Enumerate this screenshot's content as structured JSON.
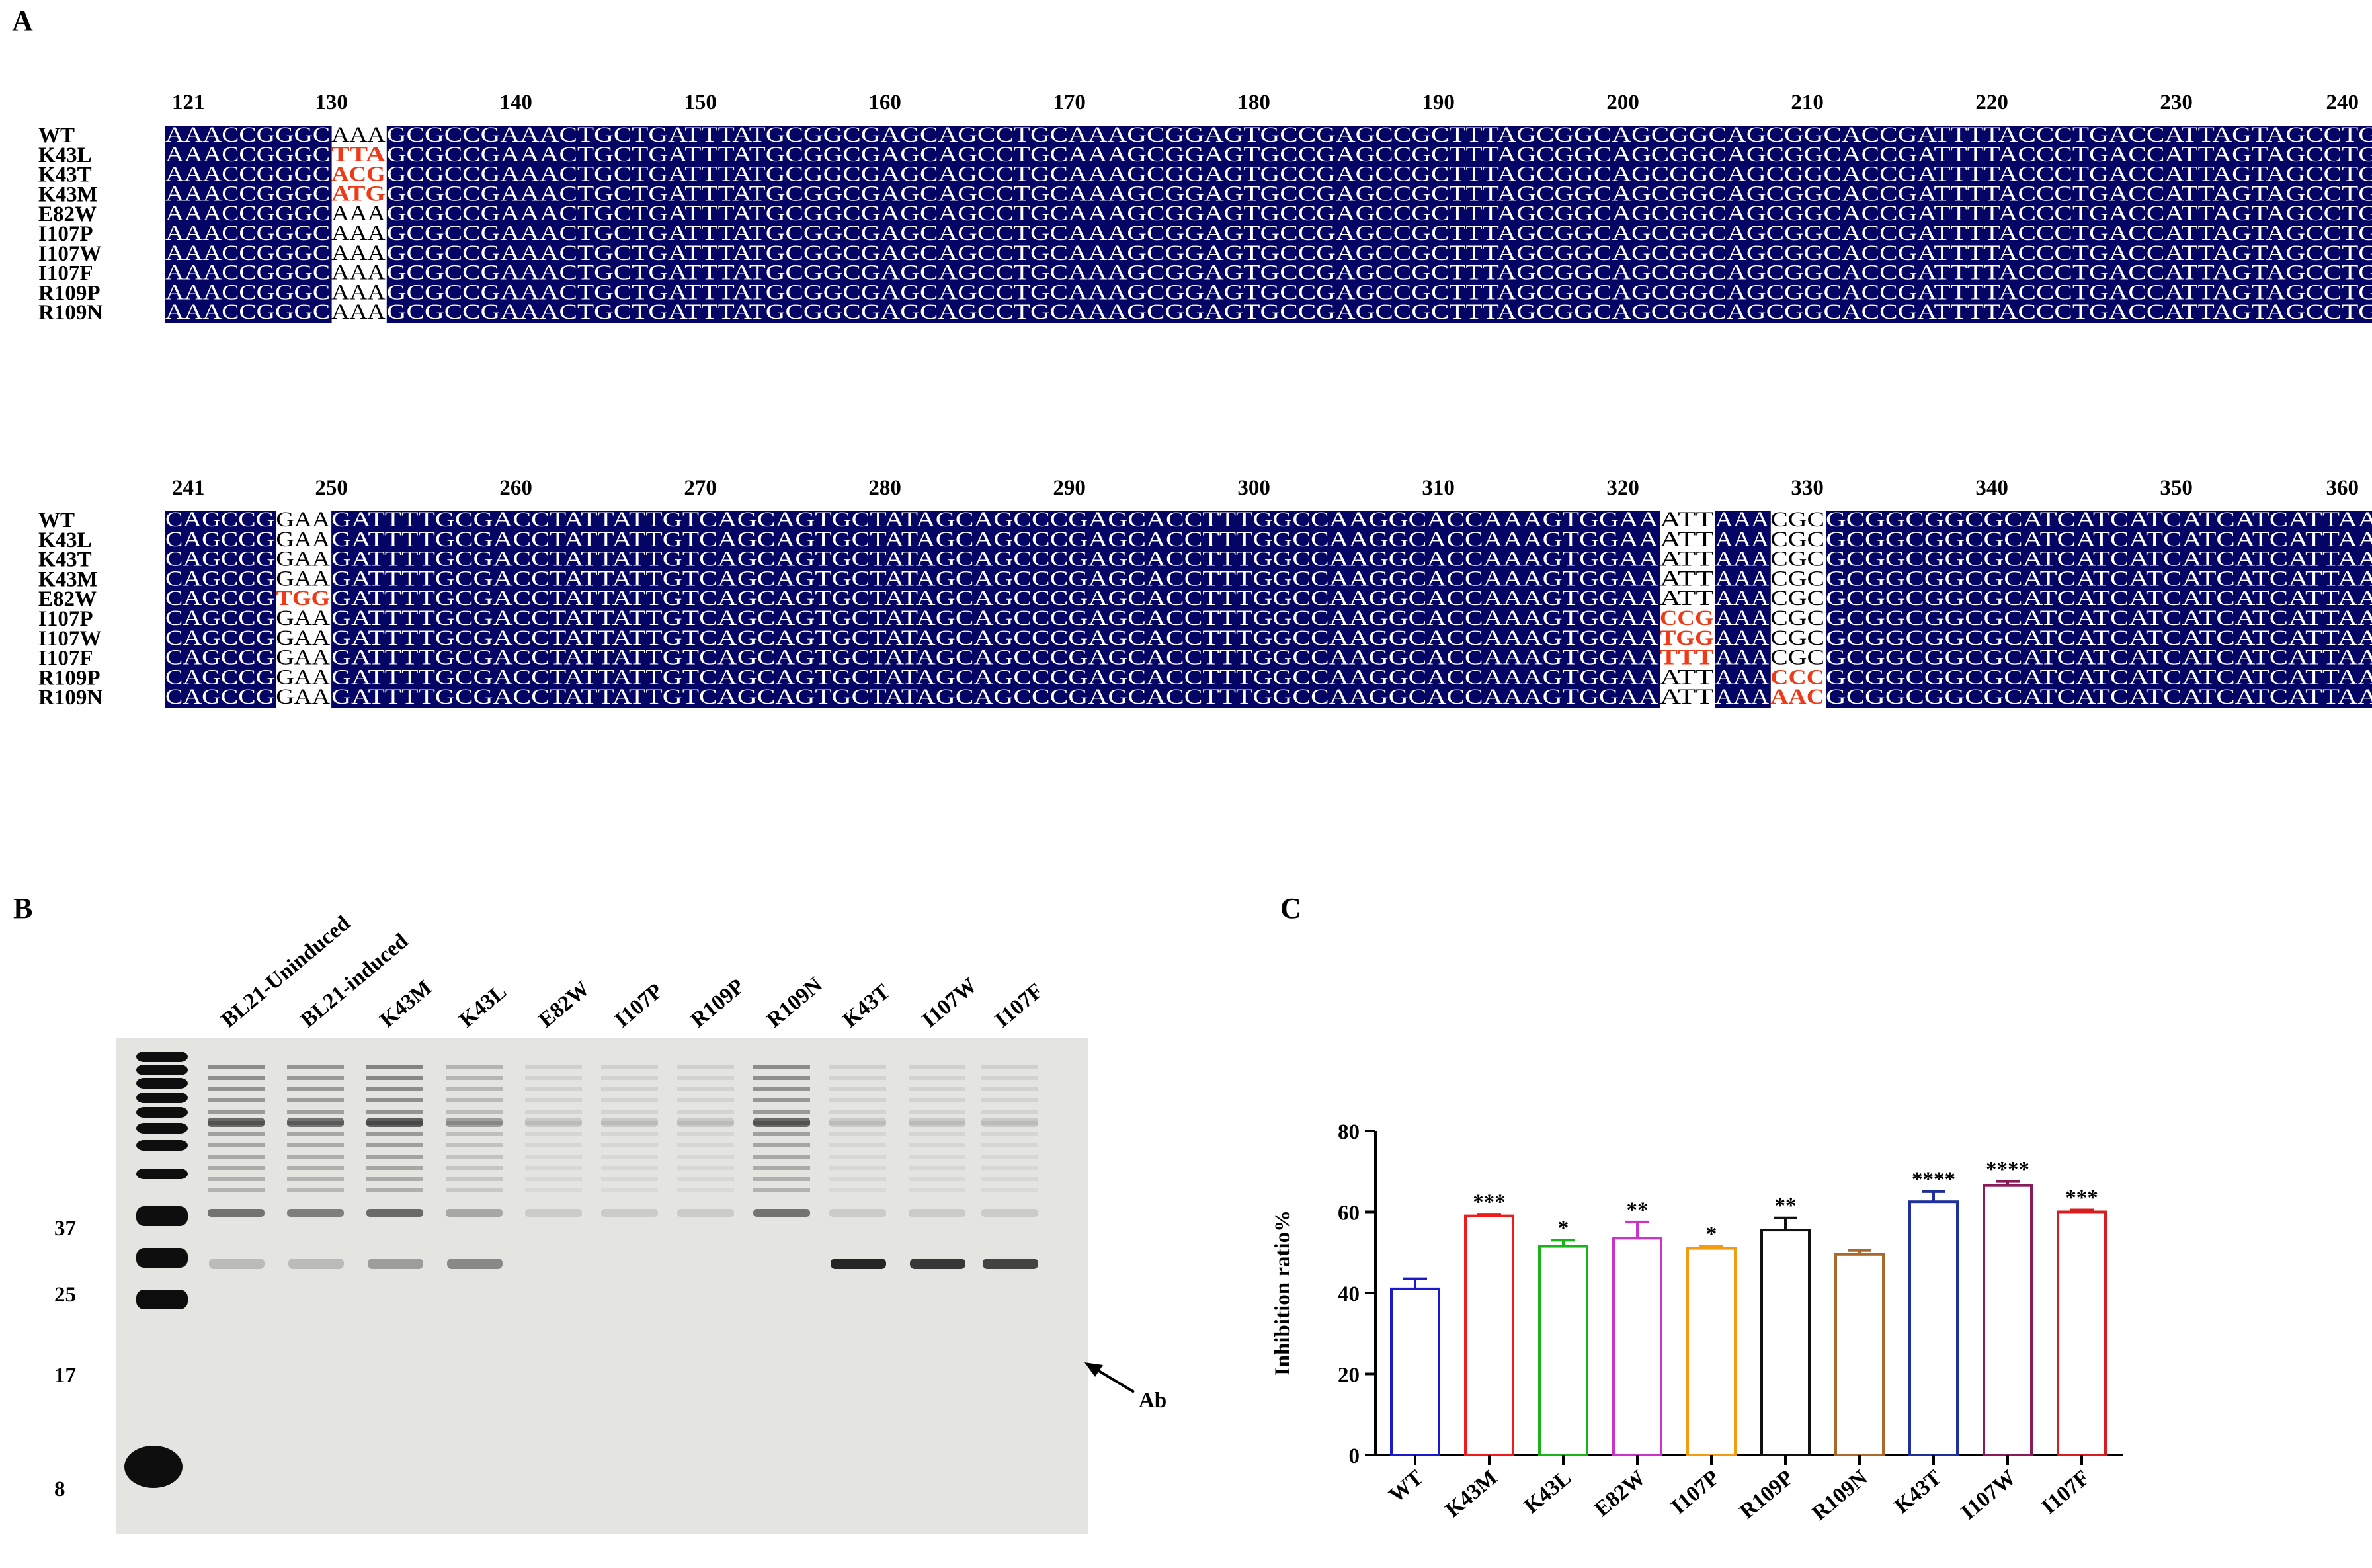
{
  "panels": {
    "a": "A",
    "b": "B",
    "c": "C"
  },
  "alignment": {
    "blocks": [
      {
        "positions": [
          "121",
          "130",
          "140",
          "150",
          "160",
          "170",
          "180",
          "190",
          "200",
          "210",
          "220",
          "230",
          "240"
        ],
        "rows": [
          {
            "name": "WT",
            "pre": "AAACCGGGC",
            "codon": "AAA",
            "mutated": false,
            "post": "GCGCCGAAACTGCTGATTTATGCGGCGAGCAGCCTGCAAAGCGGAGTGCCGAGCCGCTTTAGCGGCAGCGGCAGCGGCACCGATTTTACCCTGACCATTAGTAGCCTG"
          },
          {
            "name": "K43L",
            "pre": "AAACCGGGC",
            "codon": "TTA",
            "mutated": true,
            "post": "GCGCCGAAACTGCTGATTTATGCGGCGAGCAGCCTGCAAAGCGGAGTGCCGAGCCGCTTTAGCGGCAGCGGCAGCGGCACCGATTTTACCCTGACCATTAGTAGCCTG"
          },
          {
            "name": "K43T",
            "pre": "AAACCGGGC",
            "codon": "ACG",
            "mutated": true,
            "post": "GCGCCGAAACTGCTGATTTATGCGGCGAGCAGCCTGCAAAGCGGAGTGCCGAGCCGCTTTAGCGGCAGCGGCAGCGGCACCGATTTTACCCTGACCATTAGTAGCCTG"
          },
          {
            "name": "K43M",
            "pre": "AAACCGGGC",
            "codon": "ATG",
            "mutated": true,
            "post": "GCGCCGAAACTGCTGATTTATGCGGCGAGCAGCCTGCAAAGCGGAGTGCCGAGCCGCTTTAGCGGCAGCGGCAGCGGCACCGATTTTACCCTGACCATTAGTAGCCTG"
          },
          {
            "name": "E82W",
            "pre": "AAACCGGGC",
            "codon": "AAA",
            "mutated": false,
            "post": "GCGCCGAAACTGCTGATTTATGCGGCGAGCAGCCTGCAAAGCGGAGTGCCGAGCCGCTTTAGCGGCAGCGGCAGCGGCACCGATTTTACCCTGACCATTAGTAGCCTG"
          },
          {
            "name": "I107P",
            "pre": "AAACCGGGC",
            "codon": "AAA",
            "mutated": false,
            "post": "GCGCCGAAACTGCTGATTTATGCGGCGAGCAGCCTGCAAAGCGGAGTGCCGAGCCGCTTTAGCGGCAGCGGCAGCGGCACCGATTTTACCCTGACCATTAGTAGCCTG"
          },
          {
            "name": "I107W",
            "pre": "AAACCGGGC",
            "codon": "AAA",
            "mutated": false,
            "post": "GCGCCGAAACTGCTGATTTATGCGGCGAGCAGCCTGCAAAGCGGAGTGCCGAGCCGCTTTAGCGGCAGCGGCAGCGGCACCGATTTTACCCTGACCATTAGTAGCCTG"
          },
          {
            "name": "I107F",
            "pre": "AAACCGGGC",
            "codon": "AAA",
            "mutated": false,
            "post": "GCGCCGAAACTGCTGATTTATGCGGCGAGCAGCCTGCAAAGCGGAGTGCCGAGCCGCTTTAGCGGCAGCGGCAGCGGCACCGATTTTACCCTGACCATTAGTAGCCTG"
          },
          {
            "name": "R109P",
            "pre": "AAACCGGGC",
            "codon": "AAA",
            "mutated": false,
            "post": "GCGCCGAAACTGCTGATTTATGCGGCGAGCAGCCTGCAAAGCGGAGTGCCGAGCCGCTTTAGCGGCAGCGGCAGCGGCACCGATTTTACCCTGACCATTAGTAGCCTG"
          },
          {
            "name": "R109N",
            "pre": "AAACCGGGC",
            "codon": "AAA",
            "mutated": false,
            "post": "GCGCCGAAACTGCTGATTTATGCGGCGAGCAGCCTGCAAAGCGGAGTGCCGAGCCGCTTTAGCGGCAGCGGCAGCGGCACCGATTTTACCCTGACCATTAGTAGCCTG"
          }
        ]
      },
      {
        "positions": [
          "241",
          "250",
          "260",
          "270",
          "280",
          "290",
          "300",
          "310",
          "320",
          "330",
          "340",
          "350",
          "360"
        ],
        "rows": [
          {
            "name": "WT",
            "pre": "CAGCCG",
            "codon1": "GAA",
            "mut1": false,
            "mid": "GATTTTGCGACCTATTATTGTCAGCAGTGCTATAGCAGCCCGAGCACCTTTGGCCAAGGCACCAAAGTGGAA",
            "codon2": "ATT",
            "mut2": false,
            "mid2": "AAA",
            "codon3": "CGC",
            "mut3": false,
            "post": "GCGGCGGCGCATCATCATCATCATCATTAA"
          },
          {
            "name": "K43L",
            "pre": "CAGCCG",
            "codon1": "GAA",
            "mut1": false,
            "mid": "GATTTTGCGACCTATTATTGTCAGCAGTGCTATAGCAGCCCGAGCACCTTTGGCCAAGGCACCAAAGTGGAA",
            "codon2": "ATT",
            "mut2": false,
            "mid2": "AAA",
            "codon3": "CGC",
            "mut3": false,
            "post": "GCGGCGGCGCATCATCATCATCATCATTAA"
          },
          {
            "name": "K43T",
            "pre": "CAGCCG",
            "codon1": "GAA",
            "mut1": false,
            "mid": "GATTTTGCGACCTATTATTGTCAGCAGTGCTATAGCAGCCCGAGCACCTTTGGCCAAGGCACCAAAGTGGAA",
            "codon2": "ATT",
            "mut2": false,
            "mid2": "AAA",
            "codon3": "CGC",
            "mut3": false,
            "post": "GCGGCGGCGCATCATCATCATCATCATTAA"
          },
          {
            "name": "K43M",
            "pre": "CAGCCG",
            "codon1": "GAA",
            "mut1": false,
            "mid": "GATTTTGCGACCTATTATTGTCAGCAGTGCTATAGCAGCCCGAGCACCTTTGGCCAAGGCACCAAAGTGGAA",
            "codon2": "ATT",
            "mut2": false,
            "mid2": "AAA",
            "codon3": "CGC",
            "mut3": false,
            "post": "GCGGCGGCGCATCATCATCATCATCATTAA"
          },
          {
            "name": "E82W",
            "pre": "CAGCCG",
            "codon1": "TGG",
            "mut1": true,
            "mid": "GATTTTGCGACCTATTATTGTCAGCAGTGCTATAGCAGCCCGAGCACCTTTGGCCAAGGCACCAAAGTGGAA",
            "codon2": "ATT",
            "mut2": false,
            "mid2": "AAA",
            "codon3": "CGC",
            "mut3": false,
            "post": "GCGGCGGCGCATCATCATCATCATCATTAA"
          },
          {
            "name": "I107P",
            "pre": "CAGCCG",
            "codon1": "GAA",
            "mut1": false,
            "mid": "GATTTTGCGACCTATTATTGTCAGCAGTGCTATAGCAGCCCGAGCACCTTTGGCCAAGGCACCAAAGTGGAA",
            "codon2": "CCG",
            "mut2": true,
            "mid2": "AAA",
            "codon3": "CGC",
            "mut3": false,
            "post": "GCGGCGGCGCATCATCATCATCATCATTAA"
          },
          {
            "name": "I107W",
            "pre": "CAGCCG",
            "codon1": "GAA",
            "mut1": false,
            "mid": "GATTTTGCGACCTATTATTGTCAGCAGTGCTATAGCAGCCCGAGCACCTTTGGCCAAGGCACCAAAGTGGAA",
            "codon2": "TGG",
            "mut2": true,
            "mid2": "AAA",
            "codon3": "CGC",
            "mut3": false,
            "post": "GCGGCGGCGCATCATCATCATCATCATTAA"
          },
          {
            "name": "I107F",
            "pre": "CAGCCG",
            "codon1": "GAA",
            "mut1": false,
            "mid": "GATTTTGCGACCTATTATTGTCAGCAGTGCTATAGCAGCCCGAGCACCTTTGGCCAAGGCACCAAAGTGGAA",
            "codon2": "TTT",
            "mut2": true,
            "mid2": "AAA",
            "codon3": "CGC",
            "mut3": false,
            "post": "GCGGCGGCGCATCATCATCATCATCATTAA"
          },
          {
            "name": "R109P",
            "pre": "CAGCCG",
            "codon1": "GAA",
            "mut1": false,
            "mid": "GATTTTGCGACCTATTATTGTCAGCAGTGCTATAGCAGCCCGAGCACCTTTGGCCAAGGCACCAAAGTGGAA",
            "codon2": "ATT",
            "mut2": false,
            "mid2": "AAA",
            "codon3": "CCC",
            "mut3": true,
            "post": "GCGGCGGCGCATCATCATCATCATCATTAA"
          },
          {
            "name": "R109N",
            "pre": "CAGCCG",
            "codon1": "GAA",
            "mut1": false,
            "mid": "GATTTTGCGACCTATTATTGTCAGCAGTGCTATAGCAGCCCGAGCACCTTTGGCCAAGGCACCAAAGTGGAA",
            "codon2": "ATT",
            "mut2": false,
            "mid2": "AAA",
            "codon3": "AAC",
            "mut3": true,
            "post": "GCGGCGGCGCATCATCATCATCATCATTAA"
          }
        ]
      }
    ]
  },
  "gel": {
    "lanes": [
      "BL21-Uninduced",
      "BL21-induced",
      "K43M",
      "K43L",
      "E82W",
      "I107P",
      "R109P",
      "R109N",
      "K43T",
      "I107W",
      "I107F"
    ],
    "markers": [
      "37",
      "25",
      "17",
      "8"
    ],
    "arrow_label": "Ab"
  },
  "colors": {
    "highlight": "#040464",
    "mutation": "#ee3a16",
    "text_on_highlight": "#ffffff"
  },
  "chart_data": {
    "type": "bar",
    "categories": [
      "WT",
      "K43M",
      "K43L",
      "E82W",
      "I107P",
      "R109P",
      "R109N",
      "K43T",
      "I107W",
      "I107F"
    ],
    "values": [
      41,
      59,
      51.5,
      53.5,
      51,
      55.5,
      49.5,
      62.5,
      66.5,
      60
    ],
    "errors": [
      2.5,
      0.4,
      1.5,
      4,
      0.5,
      3,
      1,
      2.5,
      1,
      0.5
    ],
    "significance": [
      "",
      "***",
      "*",
      "**",
      "*",
      "**",
      "",
      "****",
      "****",
      "***"
    ],
    "bar_colors": [
      "#1a1acc",
      "#ee1c1c",
      "#1ab41a",
      "#cc33cc",
      "#f39c12",
      "#111111",
      "#a9692a",
      "#1f2f9e",
      "#8b1a5a",
      "#d61e1e"
    ],
    "ylabel": "Inhibition ratio%",
    "xlabel": "",
    "ylim": [
      0,
      80
    ],
    "yticks": [
      "0",
      "20",
      "40",
      "60",
      "80"
    ]
  }
}
